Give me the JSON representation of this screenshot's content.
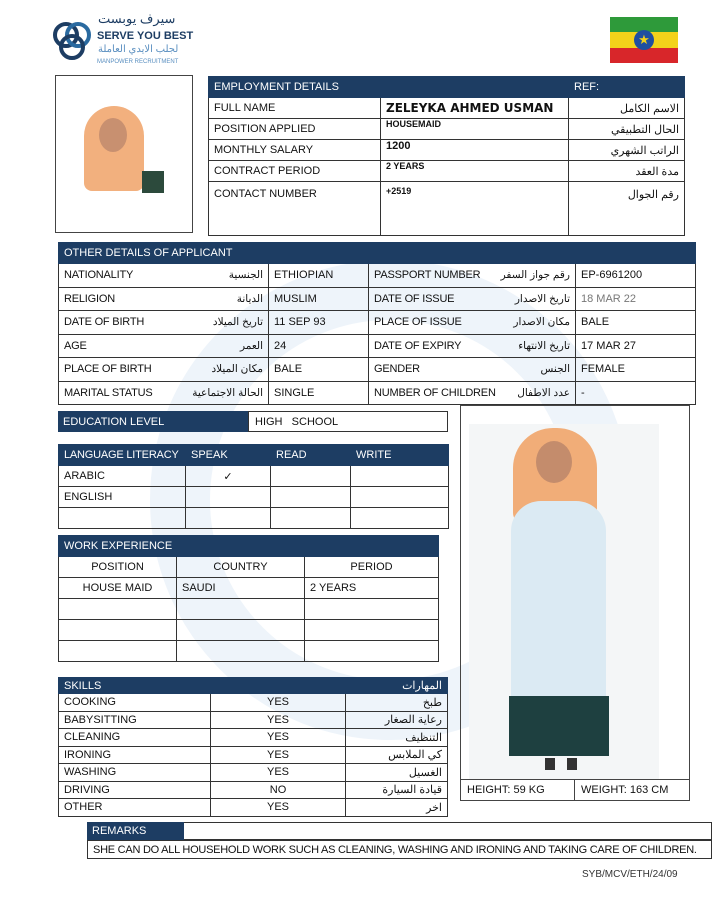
{
  "logo": {
    "arabic": "سيرف يوبست",
    "name": "SERVE YOU BEST",
    "arabic_sub": "لجلب الايدي العاملة",
    "sub": "MANPOWER RECRUITMENT"
  },
  "flag": "ethiopia-flag",
  "employment": {
    "title": "EMPLOYMENT DETAILS",
    "ref_label": "REF:",
    "rows": [
      {
        "label": "FULL NAME",
        "value": "ZELEYKA  AHMED  USMAN",
        "arabic": "الاسم الكامل"
      },
      {
        "label": "POSITION APPLIED",
        "value": "HOUSEMAID",
        "arabic": "الحال التطبيقي"
      },
      {
        "label": "MONTHLY SALARY",
        "value": "1200",
        "arabic": "الراتب الشهري"
      },
      {
        "label": "CONTRACT PERIOD",
        "value": "2 YEARS",
        "arabic": "مدة العقد"
      },
      {
        "label": "CONTACT NUMBER",
        "value": "+2519",
        "arabic": "رقم الجوال"
      }
    ]
  },
  "other": {
    "title": "OTHER DETAILS OF APPLICANT",
    "rows": [
      {
        "l1": "NATIONALITY",
        "a1": "الجنسية",
        "v1": "ETHIOPIAN",
        "l2": "PASSPORT NUMBER",
        "a2": "رقم جواز السفر",
        "v2": "EP-6961200"
      },
      {
        "l1": "RELIGION",
        "a1": "الديانة",
        "v1": "MUSLIM",
        "l2": "DATE OF ISSUE",
        "a2": "تاريخ الاصدار",
        "v2": "18  MAR  22"
      },
      {
        "l1": "DATE OF BIRTH",
        "a1": "تاريخ الميلاد",
        "v1": "11 SEP 93",
        "l2": "PLACE OF ISSUE",
        "a2": "مكان الاصدار",
        "v2": "BALE"
      },
      {
        "l1": "AGE",
        "a1": "العمر",
        "v1": "24",
        "l2": "DATE OF EXPIRY",
        "a2": "تاريخ الانتهاء",
        "v2": "17  MAR  27"
      },
      {
        "l1": "PLACE OF BIRTH",
        "a1": "مكان الميلاد",
        "v1": "BALE",
        "l2": "GENDER",
        "a2": "الجنس",
        "v2": "FEMALE"
      },
      {
        "l1": "MARITAL STATUS",
        "a1": "الحالة الاجتماعية",
        "v1": "SINGLE",
        "l2": "NUMBER OF CHILDREN",
        "a2": "عدد الاطفال",
        "v2": "-"
      }
    ]
  },
  "education": {
    "label": "EDUCATION LEVEL",
    "value": "HIGH   SCHOOL"
  },
  "language": {
    "headers": [
      "LANGUAGE LITERACY",
      "SPEAK",
      "READ",
      "WRITE"
    ],
    "rows": [
      [
        "ARABIC",
        "✓",
        "",
        ""
      ],
      [
        "ENGLISH",
        "",
        "",
        ""
      ],
      [
        "",
        "",
        "",
        ""
      ]
    ]
  },
  "work": {
    "title": "WORK EXPERIENCE",
    "headers": [
      "POSITION",
      "COUNTRY",
      "PERIOD"
    ],
    "rows": [
      [
        "HOUSE MAID",
        "SAUDI",
        "2 YEARS"
      ],
      [
        "",
        "",
        ""
      ],
      [
        "",
        "",
        ""
      ],
      [
        "",
        "",
        ""
      ]
    ]
  },
  "skills": {
    "title": "SKILLS",
    "arabic_title": "المهارات",
    "rows": [
      {
        "label": "COOKING",
        "value": "YES",
        "arabic": "طبخ"
      },
      {
        "label": "BABYSITTING",
        "value": "YES",
        "arabic": "رعاية الصغار"
      },
      {
        "label": "CLEANING",
        "value": "YES",
        "arabic": "التنظيف"
      },
      {
        "label": "IRONING",
        "value": "YES",
        "arabic": "كي الملابس"
      },
      {
        "label": "WASHING",
        "value": "YES",
        "arabic": "الغسيل"
      },
      {
        "label": "DRIVING",
        "value": "NO",
        "arabic": "قيادة السيارة"
      },
      {
        "label": "OTHER",
        "value": "YES",
        "arabic": "اخر"
      }
    ]
  },
  "measurements": {
    "height": "HEIGHT: 59 KG",
    "weight": "WEIGHT: 163 CM"
  },
  "remarks": {
    "title": "REMARKS",
    "text": "SHE CAN DO ALL HOUSEHOLD WORK SUCH AS CLEANING, WASHING AND IRONING AND TAKING CARE OF CHILDREN."
  },
  "ref_code": "SYB/MCV/ETH/24/09"
}
